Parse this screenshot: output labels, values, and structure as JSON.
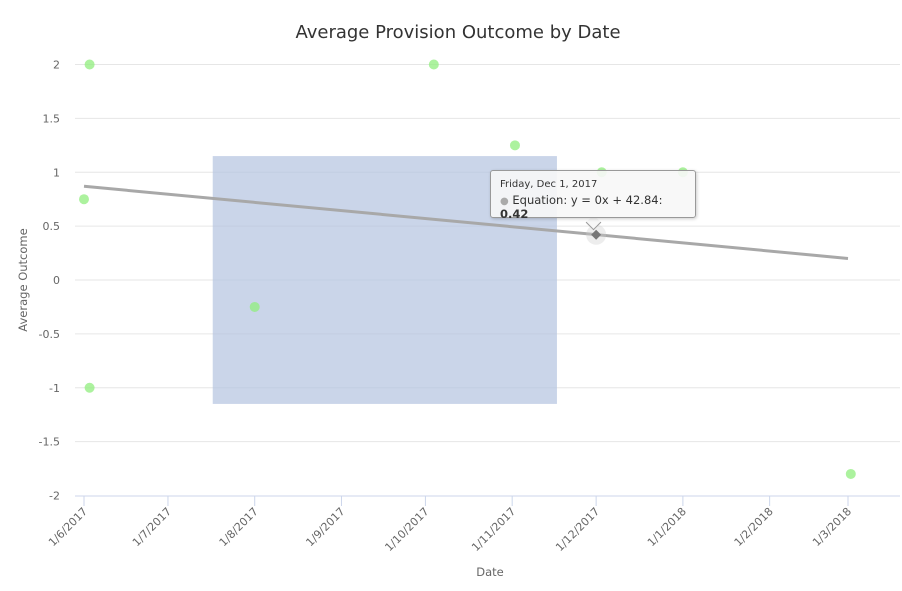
{
  "chart_data": {
    "type": "scatter",
    "title": "Average Provision Outcome by Date",
    "xlabel": "Date",
    "ylabel": "Average Outcome",
    "xlim": [
      "2017-05-31",
      "2018-03-20"
    ],
    "ylim": [
      -2,
      2
    ],
    "grid": true,
    "x_ticks": [
      {
        "date": "2017-06-01",
        "label": "1/6/2017"
      },
      {
        "date": "2017-07-01",
        "label": "1/7/2017"
      },
      {
        "date": "2017-08-01",
        "label": "1/8/2017"
      },
      {
        "date": "2017-09-01",
        "label": "1/9/2017"
      },
      {
        "date": "2017-10-01",
        "label": "1/10/2017"
      },
      {
        "date": "2017-11-01",
        "label": "1/11/2017"
      },
      {
        "date": "2017-12-01",
        "label": "1/12/2017"
      },
      {
        "date": "2018-01-01",
        "label": "1/1/2018"
      },
      {
        "date": "2018-02-01",
        "label": "1/2/2018"
      },
      {
        "date": "2018-03-01",
        "label": "1/3/2018"
      }
    ],
    "y_ticks": [
      "2",
      "1.5",
      "1",
      "0.5",
      "0",
      "-0.5",
      "-1",
      "-1.5",
      "-2"
    ],
    "series": [
      {
        "type": "scatter",
        "color": "#90ed7d",
        "points": [
          {
            "x": "2017-06-03",
            "y": 2
          },
          {
            "x": "2017-06-01",
            "y": 0.75
          },
          {
            "x": "2017-06-03",
            "y": -1
          },
          {
            "x": "2017-08-01",
            "y": -0.25
          },
          {
            "x": "2017-10-04",
            "y": 2
          },
          {
            "x": "2017-11-02",
            "y": 1.25
          },
          {
            "x": "2017-12-03",
            "y": 1
          },
          {
            "x": "2018-01-01",
            "y": 1
          },
          {
            "x": "2018-03-02",
            "y": -1.8
          }
        ]
      },
      {
        "type": "line",
        "name": "Equation: y = 0x + 42.84",
        "color": "#a8a8a8",
        "points": [
          {
            "x": "2017-06-01",
            "y": 0.87
          },
          {
            "x": "2018-03-01",
            "y": 0.2
          }
        ]
      }
    ],
    "selection": {
      "x": [
        "2017-07-17",
        "2017-11-17"
      ],
      "y": [
        -1.15,
        1.15
      ],
      "color": "#b3c3e0"
    },
    "tooltip": {
      "date": "Friday, Dec 1, 2017",
      "series": "Equation: y = 0x + 42.84",
      "value": "0.42",
      "x": "2017-12-01",
      "y": 0.42
    }
  }
}
